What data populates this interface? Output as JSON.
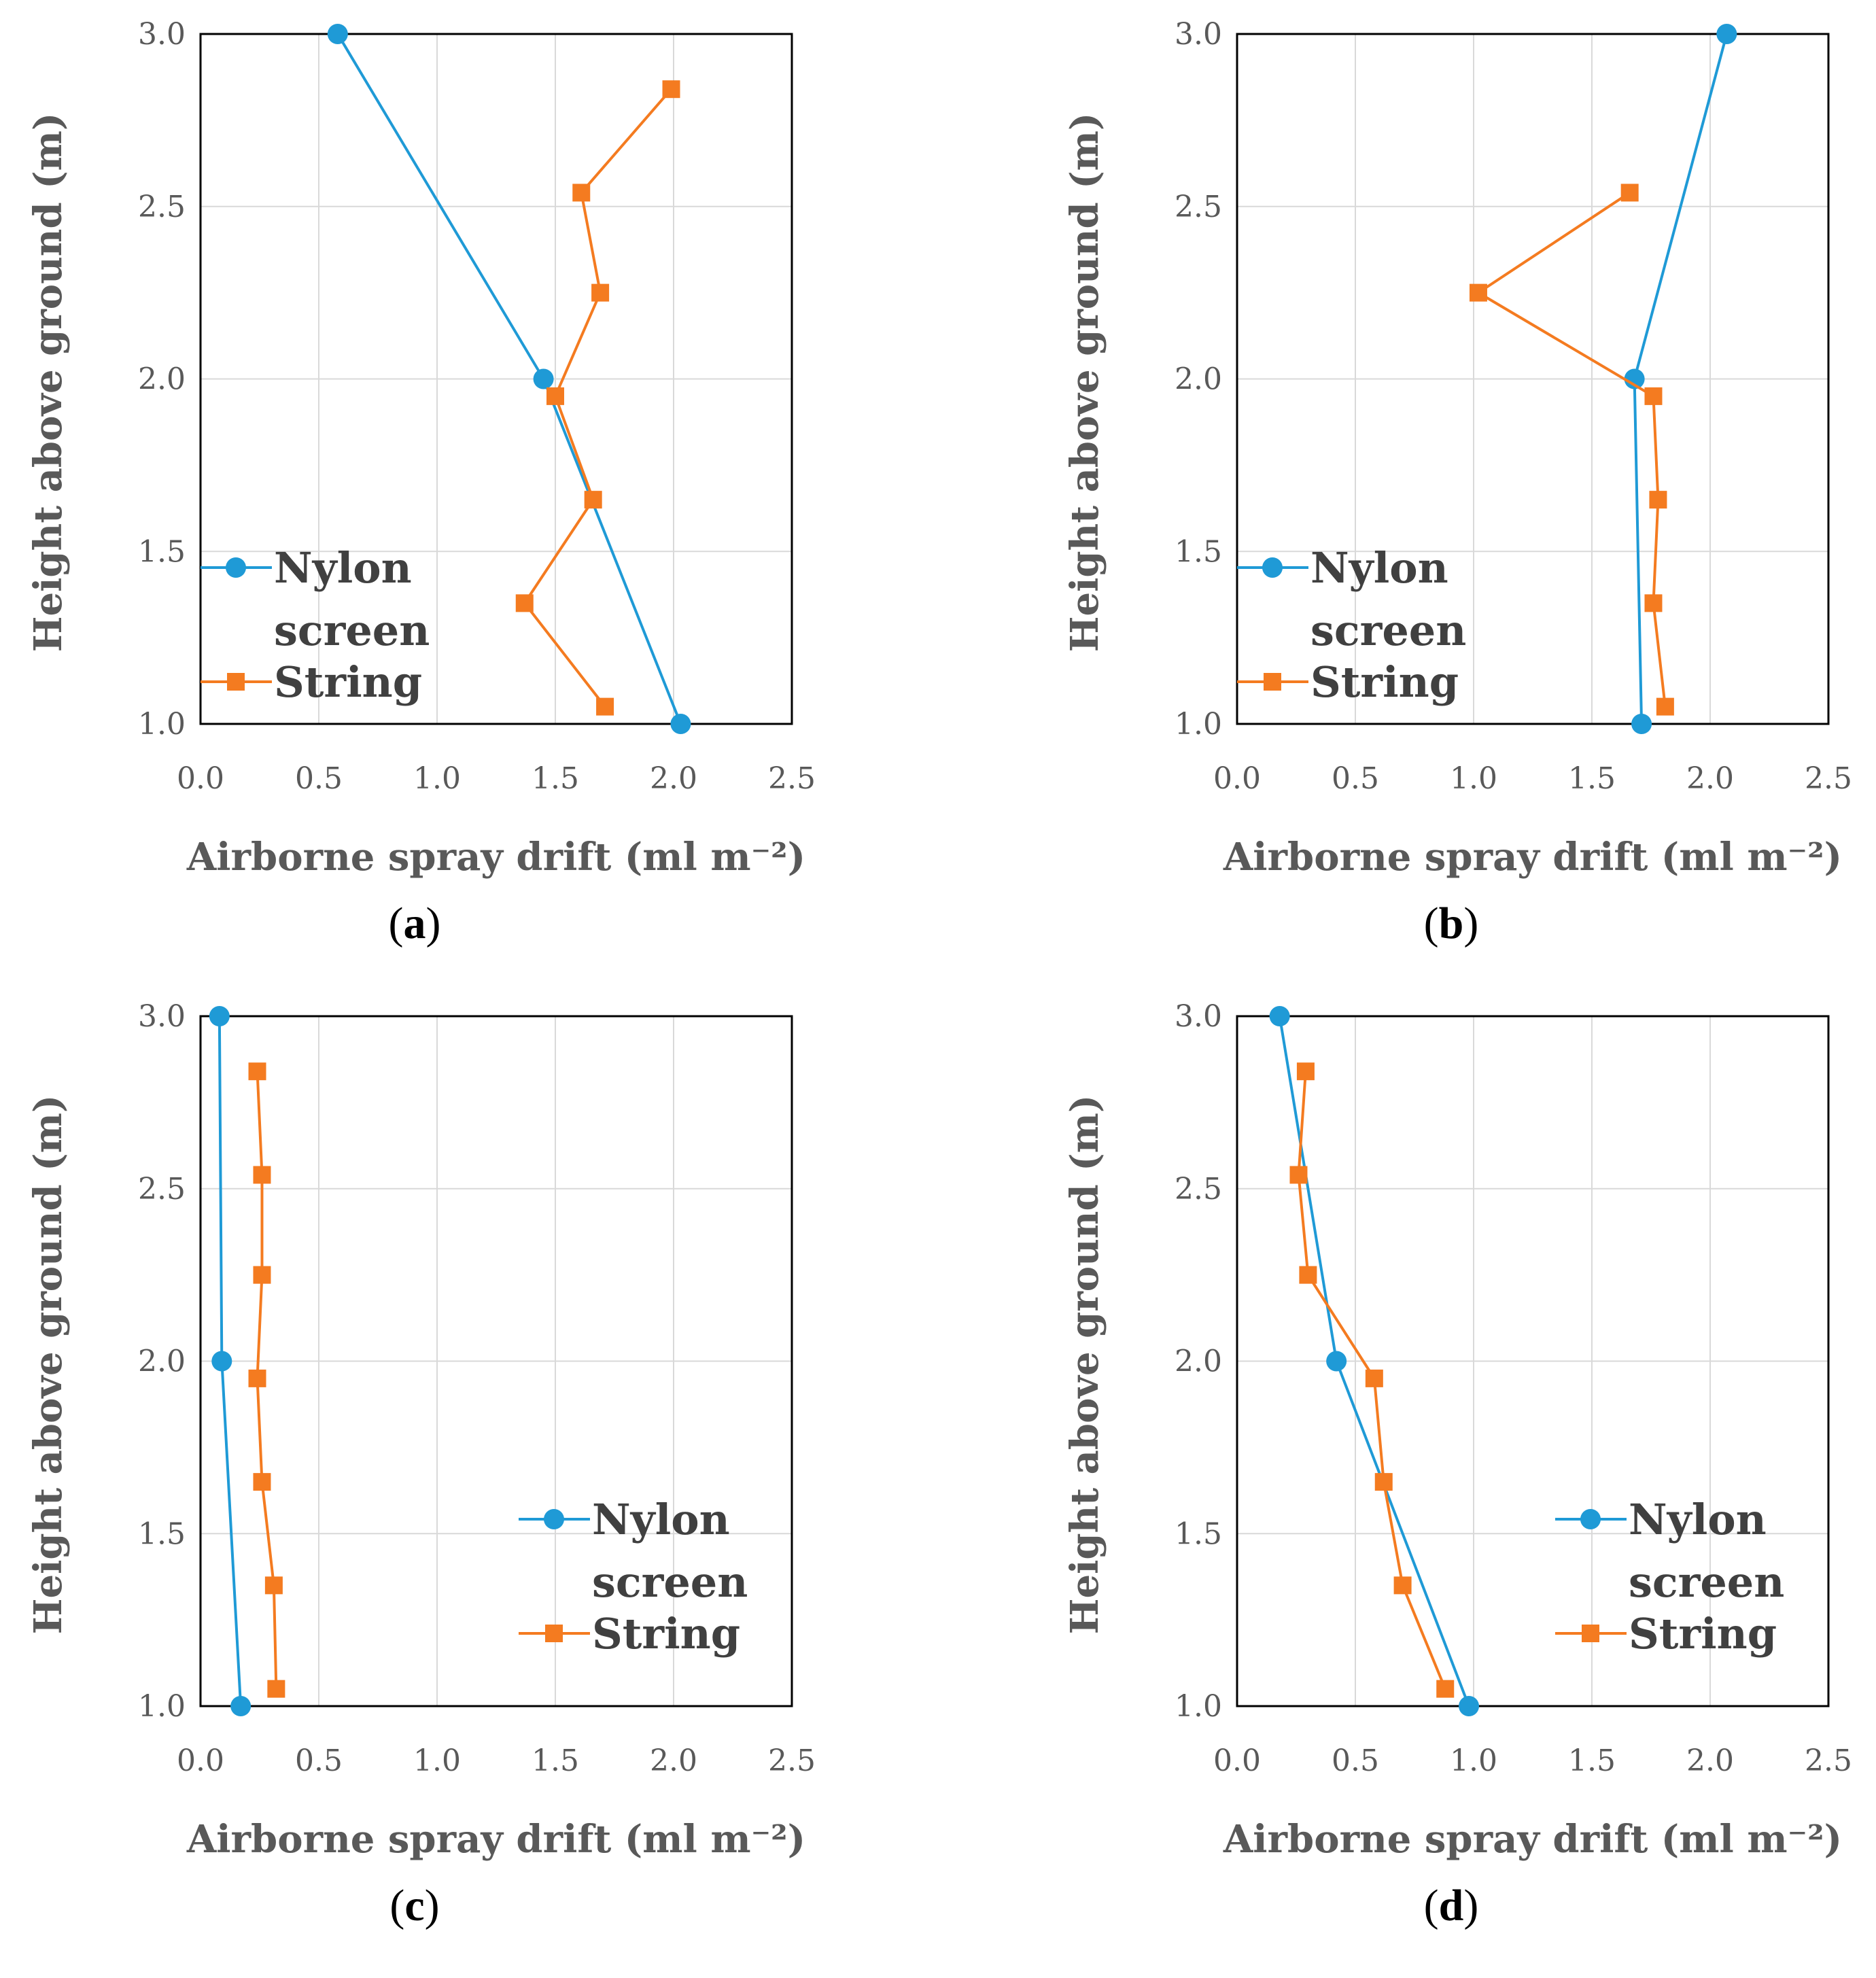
{
  "figure": {
    "colors": {
      "nylon": "#1f9ad6",
      "string": "#f47b20",
      "grid": "#d9d9d9",
      "frame": "#000000",
      "text": "#595959"
    }
  },
  "chart_data": [
    {
      "type": "line",
      "panel": "a",
      "caption": {
        "open": "(",
        "letter": "a",
        "close": ")"
      },
      "xlabel": "Airborne spray drift (ml m⁻²)",
      "ylabel": "Height above ground (m)",
      "xlim": [
        0,
        2.5
      ],
      "ylim": [
        1.0,
        3.0
      ],
      "xticks": [
        "0.0",
        "0.5",
        "1.0",
        "1.5",
        "2.0",
        "2.5"
      ],
      "yticks": [
        "1.0",
        "1.5",
        "2.0",
        "2.5",
        "3.0"
      ],
      "legend_position": "middle-left",
      "series": [
        {
          "name": "Nylon screen",
          "legend": [
            "Nylon",
            "screen"
          ],
          "marker": "circle",
          "points": [
            [
              0.58,
              3.0
            ],
            [
              1.45,
              2.0
            ],
            [
              2.03,
              1.0
            ]
          ]
        },
        {
          "name": "String",
          "legend": [
            "String"
          ],
          "marker": "square",
          "points": [
            [
              1.99,
              2.84
            ],
            [
              1.61,
              2.54
            ],
            [
              1.69,
              2.25
            ],
            [
              1.5,
              1.95
            ],
            [
              1.66,
              1.65
            ],
            [
              1.37,
              1.35
            ],
            [
              1.71,
              1.05
            ]
          ]
        }
      ]
    },
    {
      "type": "line",
      "panel": "b",
      "caption": {
        "open": "(",
        "letter": "b",
        "close": ")"
      },
      "xlabel": "Airborne spray drift (ml m⁻²)",
      "ylabel": "Height above ground (m)",
      "xlim": [
        0,
        2.5
      ],
      "ylim": [
        1.0,
        3.0
      ],
      "xticks": [
        "0.0",
        "0.5",
        "1.0",
        "1.5",
        "2.0",
        "2.5"
      ],
      "yticks": [
        "1.0",
        "1.5",
        "2.0",
        "2.5",
        "3.0"
      ],
      "legend_position": "middle-left",
      "series": [
        {
          "name": "Nylon screen",
          "legend": [
            "Nylon",
            "screen"
          ],
          "marker": "circle",
          "points": [
            [
              2.07,
              3.0
            ],
            [
              1.68,
              2.0
            ],
            [
              1.71,
              1.0
            ]
          ]
        },
        {
          "name": "String",
          "legend": [
            "String"
          ],
          "marker": "square",
          "points": [
            [
              1.66,
              2.54
            ],
            [
              1.02,
              2.25
            ],
            [
              1.76,
              1.95
            ],
            [
              1.78,
              1.65
            ],
            [
              1.76,
              1.35
            ],
            [
              1.81,
              1.05
            ]
          ]
        }
      ]
    },
    {
      "type": "line",
      "panel": "c",
      "caption": {
        "open": "(",
        "letter": "c",
        "close": ")"
      },
      "xlabel": "Airborne spray drift (ml m⁻²)",
      "ylabel": "Height above ground (m)",
      "xlim": [
        0,
        2.5
      ],
      "ylim": [
        1.0,
        3.0
      ],
      "xticks": [
        "0.0",
        "0.5",
        "1.0",
        "1.5",
        "2.0",
        "2.5"
      ],
      "yticks": [
        "1.0",
        "1.5",
        "2.0",
        "2.5",
        "3.0"
      ],
      "legend_position": "lower-right",
      "series": [
        {
          "name": "Nylon screen",
          "legend": [
            "Nylon",
            "screen"
          ],
          "marker": "circle",
          "points": [
            [
              0.08,
              3.0
            ],
            [
              0.09,
              2.0
            ],
            [
              0.17,
              1.0
            ]
          ]
        },
        {
          "name": "String",
          "legend": [
            "String"
          ],
          "marker": "square",
          "points": [
            [
              0.24,
              2.84
            ],
            [
              0.26,
              2.54
            ],
            [
              0.26,
              2.25
            ],
            [
              0.24,
              1.95
            ],
            [
              0.26,
              1.65
            ],
            [
              0.31,
              1.35
            ],
            [
              0.32,
              1.05
            ]
          ]
        }
      ]
    },
    {
      "type": "line",
      "panel": "d",
      "caption": {
        "open": "(",
        "letter": "d",
        "close": ")"
      },
      "xlabel": "Airborne spray drift (ml m⁻²)",
      "ylabel": "Height above ground (m)",
      "xlim": [
        0,
        2.5
      ],
      "ylim": [
        1.0,
        3.0
      ],
      "xticks": [
        "0.0",
        "0.5",
        "1.0",
        "1.5",
        "2.0",
        "2.5"
      ],
      "yticks": [
        "1.0",
        "1.5",
        "2.0",
        "2.5",
        "3.0"
      ],
      "legend_position": "lower-right",
      "series": [
        {
          "name": "Nylon screen",
          "legend": [
            "Nylon",
            "screen"
          ],
          "marker": "circle",
          "points": [
            [
              0.18,
              3.0
            ],
            [
              0.42,
              2.0
            ],
            [
              0.98,
              1.0
            ]
          ]
        },
        {
          "name": "String",
          "legend": [
            "String"
          ],
          "marker": "square",
          "points": [
            [
              0.29,
              2.84
            ],
            [
              0.26,
              2.54
            ],
            [
              0.3,
              2.25
            ],
            [
              0.58,
              1.95
            ],
            [
              0.62,
              1.65
            ],
            [
              0.7,
              1.35
            ],
            [
              0.88,
              1.05
            ]
          ]
        }
      ]
    }
  ]
}
